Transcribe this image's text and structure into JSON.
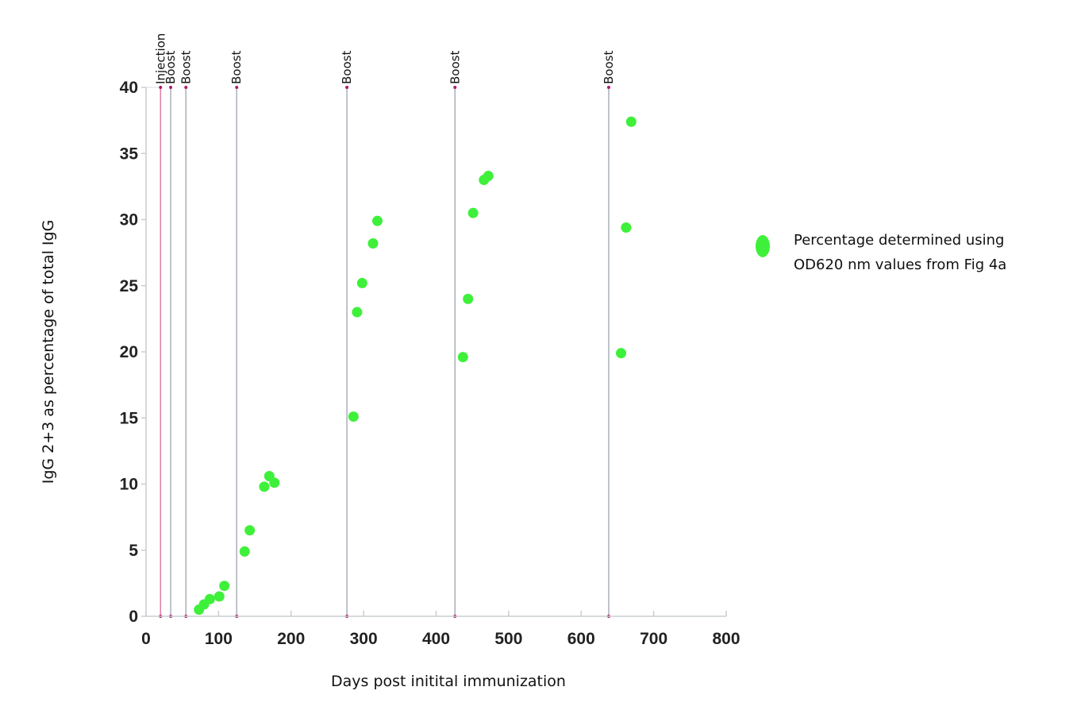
{
  "chart_data": {
    "type": "scatter",
    "xlabel": "Days post initital immunization",
    "ylabel": "IgG 2+3 as percentage of total IgG",
    "xlim": [
      0,
      800
    ],
    "ylim": [
      0,
      40
    ],
    "x_ticks": [
      0,
      100,
      200,
      300,
      400,
      500,
      600,
      700,
      800
    ],
    "y_ticks": [
      0,
      5,
      10,
      15,
      20,
      25,
      30,
      35,
      40
    ],
    "grid": false,
    "legend_position": "right",
    "marker_color": "#3ef03a",
    "events": [
      {
        "label": "Injection",
        "day": 20,
        "color": "#e07fa6"
      },
      {
        "label": "Boost",
        "day": 34,
        "color": "#a9b0b8"
      },
      {
        "label": "Boost",
        "day": 55,
        "color": "#a9b0b8"
      },
      {
        "label": "Boost",
        "day": 125,
        "color": "#a9b0b8"
      },
      {
        "label": "Boost",
        "day": 277,
        "color": "#a9b0b8"
      },
      {
        "label": "Boost",
        "day": 426,
        "color": "#a9b0b8"
      },
      {
        "label": "Boost",
        "day": 638,
        "color": "#a9b0b8"
      }
    ],
    "series": [
      {
        "name": "Percentage determined using OD620 nm values from Fig 4a",
        "name_lines": [
          "Percentage determined using",
          "OD620 nm values from Fig 4a"
        ],
        "points": [
          {
            "x": 73,
            "y": 0.5
          },
          {
            "x": 80,
            "y": 0.9
          },
          {
            "x": 88,
            "y": 1.3
          },
          {
            "x": 101,
            "y": 1.5
          },
          {
            "x": 108,
            "y": 2.3
          },
          {
            "x": 136,
            "y": 4.9
          },
          {
            "x": 143,
            "y": 6.5
          },
          {
            "x": 163,
            "y": 9.8
          },
          {
            "x": 170,
            "y": 10.6
          },
          {
            "x": 177,
            "y": 10.1
          },
          {
            "x": 286,
            "y": 15.1
          },
          {
            "x": 291,
            "y": 23.0
          },
          {
            "x": 298,
            "y": 25.2
          },
          {
            "x": 313,
            "y": 28.2
          },
          {
            "x": 319,
            "y": 29.9
          },
          {
            "x": 437,
            "y": 19.6
          },
          {
            "x": 444,
            "y": 24.0
          },
          {
            "x": 451,
            "y": 30.5
          },
          {
            "x": 466,
            "y": 33.0
          },
          {
            "x": 472,
            "y": 33.3
          },
          {
            "x": 655,
            "y": 19.9
          },
          {
            "x": 662,
            "y": 29.4
          },
          {
            "x": 669,
            "y": 37.4
          }
        ]
      }
    ]
  }
}
